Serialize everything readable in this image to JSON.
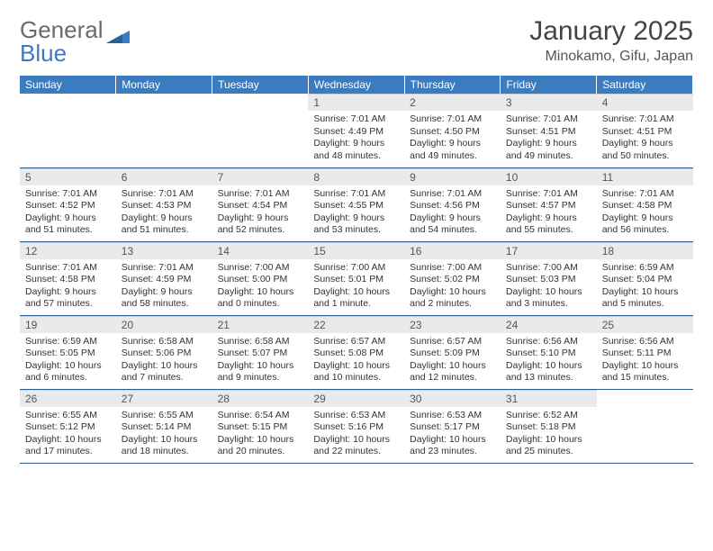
{
  "brand": {
    "part1": "General",
    "part2": "Blue"
  },
  "title": "January 2025",
  "location": "Minokamo, Gifu, Japan",
  "colors": {
    "header_bg": "#3b7bbf",
    "header_text": "#ffffff",
    "daynum_bg": "#e9eaeb",
    "row_border": "#2f5e8f",
    "text": "#333333"
  },
  "daysOfWeek": [
    "Sunday",
    "Monday",
    "Tuesday",
    "Wednesday",
    "Thursday",
    "Friday",
    "Saturday"
  ],
  "firstWeekday": 3,
  "daysInMonth": 31,
  "days": {
    "1": {
      "sunrise": "7:01 AM",
      "sunset": "4:49 PM",
      "daylight": "9 hours and 48 minutes."
    },
    "2": {
      "sunrise": "7:01 AM",
      "sunset": "4:50 PM",
      "daylight": "9 hours and 49 minutes."
    },
    "3": {
      "sunrise": "7:01 AM",
      "sunset": "4:51 PM",
      "daylight": "9 hours and 49 minutes."
    },
    "4": {
      "sunrise": "7:01 AM",
      "sunset": "4:51 PM",
      "daylight": "9 hours and 50 minutes."
    },
    "5": {
      "sunrise": "7:01 AM",
      "sunset": "4:52 PM",
      "daylight": "9 hours and 51 minutes."
    },
    "6": {
      "sunrise": "7:01 AM",
      "sunset": "4:53 PM",
      "daylight": "9 hours and 51 minutes."
    },
    "7": {
      "sunrise": "7:01 AM",
      "sunset": "4:54 PM",
      "daylight": "9 hours and 52 minutes."
    },
    "8": {
      "sunrise": "7:01 AM",
      "sunset": "4:55 PM",
      "daylight": "9 hours and 53 minutes."
    },
    "9": {
      "sunrise": "7:01 AM",
      "sunset": "4:56 PM",
      "daylight": "9 hours and 54 minutes."
    },
    "10": {
      "sunrise": "7:01 AM",
      "sunset": "4:57 PM",
      "daylight": "9 hours and 55 minutes."
    },
    "11": {
      "sunrise": "7:01 AM",
      "sunset": "4:58 PM",
      "daylight": "9 hours and 56 minutes."
    },
    "12": {
      "sunrise": "7:01 AM",
      "sunset": "4:58 PM",
      "daylight": "9 hours and 57 minutes."
    },
    "13": {
      "sunrise": "7:01 AM",
      "sunset": "4:59 PM",
      "daylight": "9 hours and 58 minutes."
    },
    "14": {
      "sunrise": "7:00 AM",
      "sunset": "5:00 PM",
      "daylight": "10 hours and 0 minutes."
    },
    "15": {
      "sunrise": "7:00 AM",
      "sunset": "5:01 PM",
      "daylight": "10 hours and 1 minute."
    },
    "16": {
      "sunrise": "7:00 AM",
      "sunset": "5:02 PM",
      "daylight": "10 hours and 2 minutes."
    },
    "17": {
      "sunrise": "7:00 AM",
      "sunset": "5:03 PM",
      "daylight": "10 hours and 3 minutes."
    },
    "18": {
      "sunrise": "6:59 AM",
      "sunset": "5:04 PM",
      "daylight": "10 hours and 5 minutes."
    },
    "19": {
      "sunrise": "6:59 AM",
      "sunset": "5:05 PM",
      "daylight": "10 hours and 6 minutes."
    },
    "20": {
      "sunrise": "6:58 AM",
      "sunset": "5:06 PM",
      "daylight": "10 hours and 7 minutes."
    },
    "21": {
      "sunrise": "6:58 AM",
      "sunset": "5:07 PM",
      "daylight": "10 hours and 9 minutes."
    },
    "22": {
      "sunrise": "6:57 AM",
      "sunset": "5:08 PM",
      "daylight": "10 hours and 10 minutes."
    },
    "23": {
      "sunrise": "6:57 AM",
      "sunset": "5:09 PM",
      "daylight": "10 hours and 12 minutes."
    },
    "24": {
      "sunrise": "6:56 AM",
      "sunset": "5:10 PM",
      "daylight": "10 hours and 13 minutes."
    },
    "25": {
      "sunrise": "6:56 AM",
      "sunset": "5:11 PM",
      "daylight": "10 hours and 15 minutes."
    },
    "26": {
      "sunrise": "6:55 AM",
      "sunset": "5:12 PM",
      "daylight": "10 hours and 17 minutes."
    },
    "27": {
      "sunrise": "6:55 AM",
      "sunset": "5:14 PM",
      "daylight": "10 hours and 18 minutes."
    },
    "28": {
      "sunrise": "6:54 AM",
      "sunset": "5:15 PM",
      "daylight": "10 hours and 20 minutes."
    },
    "29": {
      "sunrise": "6:53 AM",
      "sunset": "5:16 PM",
      "daylight": "10 hours and 22 minutes."
    },
    "30": {
      "sunrise": "6:53 AM",
      "sunset": "5:17 PM",
      "daylight": "10 hours and 23 minutes."
    },
    "31": {
      "sunrise": "6:52 AM",
      "sunset": "5:18 PM",
      "daylight": "10 hours and 25 minutes."
    }
  },
  "labels": {
    "sunrise": "Sunrise:",
    "sunset": "Sunset:",
    "daylight": "Daylight:"
  }
}
